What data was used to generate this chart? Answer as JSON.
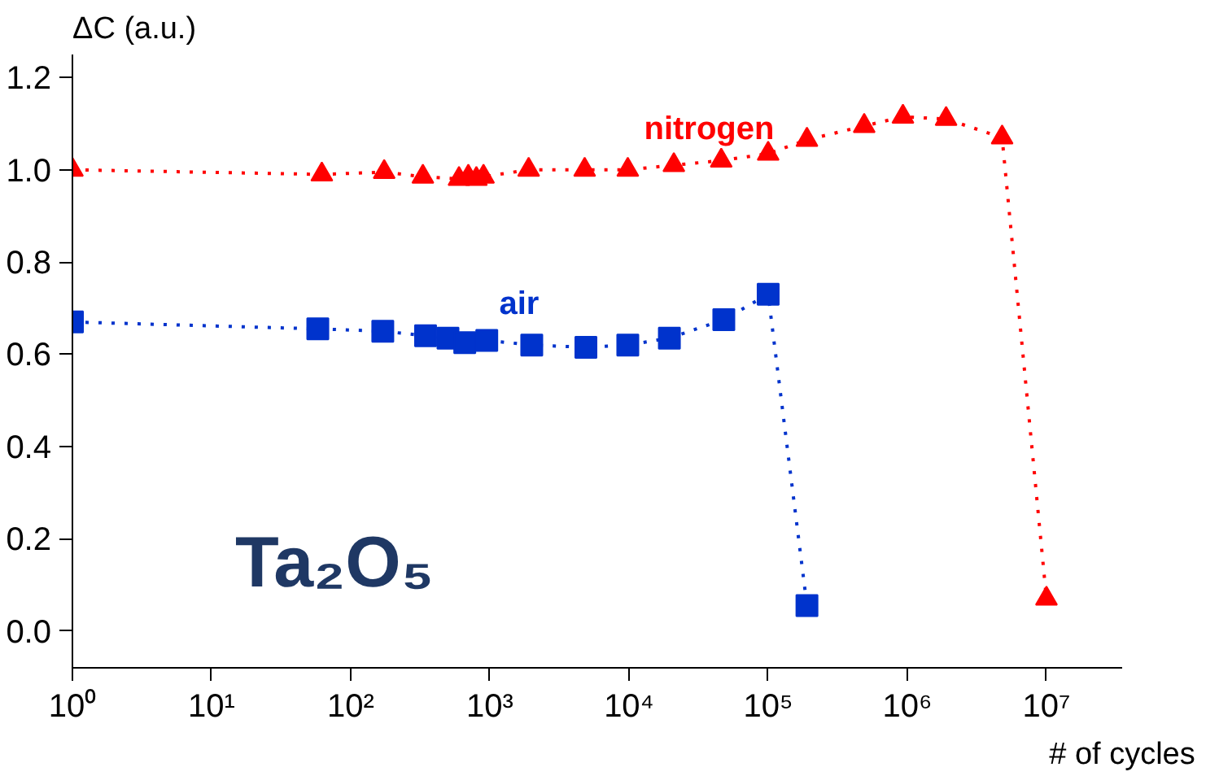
{
  "chart_data": {
    "type": "line",
    "ylabel": "ΔC (a.u.)",
    "xlabel": "# of cycles",
    "log": "x",
    "x": [
      1,
      62,
      174,
      330,
      600,
      700,
      800,
      900,
      1900,
      4800,
      9800,
      21000,
      46000,
      100000,
      190000,
      490000,
      930000,
      1900000,
      4800000,
      10000000
    ],
    "series": [
      {
        "name": "nitrogen",
        "color": "#ff0000",
        "marker": "triangle",
        "values": [
          1.0,
          0.99,
          0.995,
          0.985,
          0.98,
          0.985,
          0.98,
          0.985,
          1.0,
          1.0,
          1.0,
          1.01,
          1.02,
          1.035,
          1.065,
          1.095,
          1.115,
          1.11,
          1.07,
          0.07
        ]
      },
      {
        "name": "air",
        "color": "#0033cc",
        "marker": "square",
        "x": [
          1,
          58,
          170,
          345,
          500,
          660,
          950,
          2000,
          4900,
          9800,
          19500,
          48000,
          100000,
          190000
        ],
        "values": [
          0.67,
          0.655,
          0.65,
          0.64,
          0.635,
          0.625,
          0.63,
          0.62,
          0.615,
          0.62,
          0.635,
          0.675,
          0.73,
          0.055
        ]
      }
    ],
    "line_style": "dotted",
    "grid": false,
    "xlim": [
      1,
      35000000
    ],
    "ylim": [
      -0.08,
      1.25
    ],
    "xticks": [
      {
        "value": 1,
        "label": "10⁰"
      },
      {
        "value": 10,
        "label": "10¹"
      },
      {
        "value": 100,
        "label": "10²"
      },
      {
        "value": 1000,
        "label": "10³"
      },
      {
        "value": 10000,
        "label": "10⁴"
      },
      {
        "value": 100000,
        "label": "10⁵"
      },
      {
        "value": 1000000,
        "label": "10⁶"
      },
      {
        "value": 10000000,
        "label": "10⁷"
      }
    ],
    "yticks": [
      {
        "value": 0,
        "label": "0.0"
      },
      0.2,
      0.4,
      0.6,
      0.8,
      {
        "value": 1,
        "label": "1.0"
      },
      1.2
    ],
    "annotations": [
      "Ta₂O₅"
    ]
  }
}
